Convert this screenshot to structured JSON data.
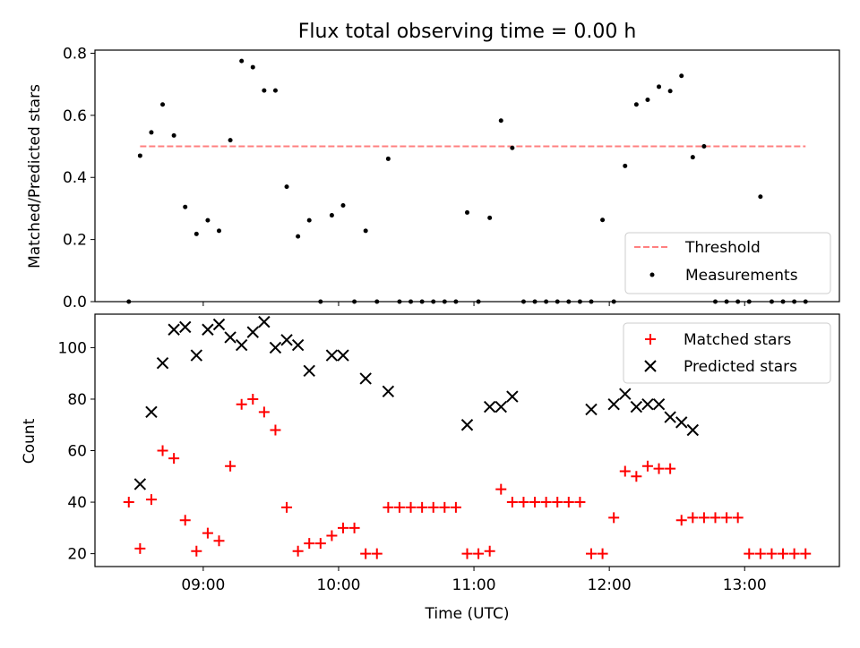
{
  "chart_data": [
    {
      "type": "scatter",
      "title": "Flux total observing time = 0.00 h",
      "ylabel": "Matched/Predicted stars",
      "xlim": [
        "08:12",
        "13:42"
      ],
      "ylim": [
        0,
        0.81
      ],
      "yticks": [
        0.0,
        0.2,
        0.4,
        0.6,
        0.8
      ],
      "ytick_labels": [
        "0.0",
        "0.2",
        "0.4",
        "0.6",
        "0.8"
      ],
      "threshold": {
        "name": "Threshold",
        "value": 0.5,
        "x_start": "08:32",
        "x_end": "13:27",
        "color": "#ff8080"
      },
      "legend": {
        "position": "lower right",
        "entries": [
          "Threshold",
          "Measurements"
        ]
      },
      "series": [
        {
          "name": "Measurements",
          "color": "#000000",
          "x": [
            "08:27",
            "08:32",
            "08:37",
            "08:42",
            "08:47",
            "08:52",
            "08:57",
            "09:02",
            "09:07",
            "09:12",
            "09:17",
            "09:22",
            "09:27",
            "09:32",
            "09:37",
            "09:42",
            "09:47",
            "09:52",
            "09:57",
            "10:02",
            "10:07",
            "10:12",
            "10:17",
            "10:22",
            "10:27",
            "10:32",
            "10:37",
            "10:42",
            "10:47",
            "10:52",
            "10:57",
            "11:02",
            "11:07",
            "11:12",
            "11:17",
            "11:22",
            "11:27",
            "11:32",
            "11:37",
            "11:42",
            "11:47",
            "11:52",
            "11:57",
            "12:02",
            "12:07",
            "12:12",
            "12:17",
            "12:22",
            "12:27",
            "12:32",
            "12:37",
            "12:42",
            "12:47",
            "12:52",
            "12:57",
            "13:02",
            "13:07",
            "13:12",
            "13:17",
            "13:22",
            "13:27"
          ],
          "y": [
            0.0,
            0.47,
            0.545,
            0.635,
            0.535,
            0.305,
            0.218,
            0.262,
            0.228,
            0.52,
            0.775,
            0.755,
            0.68,
            0.68,
            0.37,
            0.21,
            0.262,
            0.0,
            0.278,
            0.31,
            0.0,
            0.228,
            0.0,
            0.46,
            0.0,
            0.0,
            0.0,
            0.0,
            0.0,
            0.0,
            0.287,
            0.0,
            0.27,
            0.583,
            0.495,
            0.0,
            0.0,
            0.0,
            0.0,
            0.0,
            0.0,
            0.0,
            0.263,
            0.0,
            0.437,
            0.635,
            0.65,
            0.692,
            0.678,
            0.727,
            0.465,
            0.5,
            0.0,
            0.0,
            0.0,
            0.0,
            0.338,
            0.0,
            0.0,
            0.0,
            0.0
          ]
        }
      ]
    },
    {
      "type": "scatter",
      "xlabel": "Time (UTC)",
      "ylabel": "Count",
      "xlim": [
        "08:12",
        "13:42"
      ],
      "ylim": [
        15,
        113
      ],
      "xticks": [
        "09:00",
        "10:00",
        "11:00",
        "12:00",
        "13:00"
      ],
      "yticks": [
        20,
        40,
        60,
        80,
        100
      ],
      "legend": {
        "position": "upper right",
        "entries": [
          "Matched stars",
          "Predicted stars"
        ]
      },
      "series": [
        {
          "name": "Matched stars",
          "marker": "+",
          "color": "#ff0000",
          "x": [
            "08:27",
            "08:32",
            "08:37",
            "08:42",
            "08:47",
            "08:52",
            "08:57",
            "09:02",
            "09:07",
            "09:12",
            "09:17",
            "09:22",
            "09:27",
            "09:32",
            "09:37",
            "09:42",
            "09:47",
            "09:52",
            "09:57",
            "10:02",
            "10:07",
            "10:12",
            "10:17",
            "10:22",
            "10:27",
            "10:32",
            "10:37",
            "10:42",
            "10:47",
            "10:52",
            "10:57",
            "11:02",
            "11:07",
            "11:12",
            "11:17",
            "11:22",
            "11:27",
            "11:32",
            "11:37",
            "11:42",
            "11:47",
            "11:52",
            "11:57",
            "12:02",
            "12:07",
            "12:12",
            "12:17",
            "12:22",
            "12:27",
            "12:32",
            "12:37",
            "12:42",
            "12:47",
            "12:52",
            "12:57",
            "13:02",
            "13:07",
            "13:12",
            "13:17",
            "13:22",
            "13:27"
          ],
          "y": [
            40,
            22,
            41,
            60,
            57,
            33,
            21,
            28,
            25,
            54,
            78,
            80,
            75,
            68,
            38,
            21,
            24,
            24,
            27,
            30,
            30,
            20,
            20,
            38,
            38,
            38,
            38,
            38,
            38,
            38,
            20,
            20,
            21,
            45,
            40,
            40,
            40,
            40,
            40,
            40,
            40,
            20,
            20,
            34,
            52,
            50,
            54,
            53,
            53,
            33,
            34,
            34,
            34,
            34,
            34,
            20,
            20,
            20,
            20,
            20,
            20
          ]
        },
        {
          "name": "Predicted stars",
          "marker": "x",
          "color": "#000000",
          "x": [
            "08:32",
            "08:37",
            "08:42",
            "08:47",
            "08:52",
            "08:57",
            "09:02",
            "09:07",
            "09:12",
            "09:17",
            "09:22",
            "09:27",
            "09:32",
            "09:37",
            "09:42",
            "09:47",
            "09:57",
            "10:02",
            "10:12",
            "10:22",
            "10:57",
            "11:07",
            "11:12",
            "11:17",
            "11:52",
            "12:02",
            "12:07",
            "12:12",
            "12:17",
            "12:22",
            "12:27",
            "12:32",
            "12:37"
          ],
          "y": [
            47,
            75,
            94,
            107,
            108,
            97,
            107,
            109,
            104,
            101,
            106,
            110,
            100,
            103,
            101,
            91,
            97,
            97,
            88,
            83,
            70,
            77,
            77,
            81,
            76,
            78,
            82,
            77,
            78,
            78,
            73,
            71,
            68
          ]
        }
      ]
    }
  ]
}
